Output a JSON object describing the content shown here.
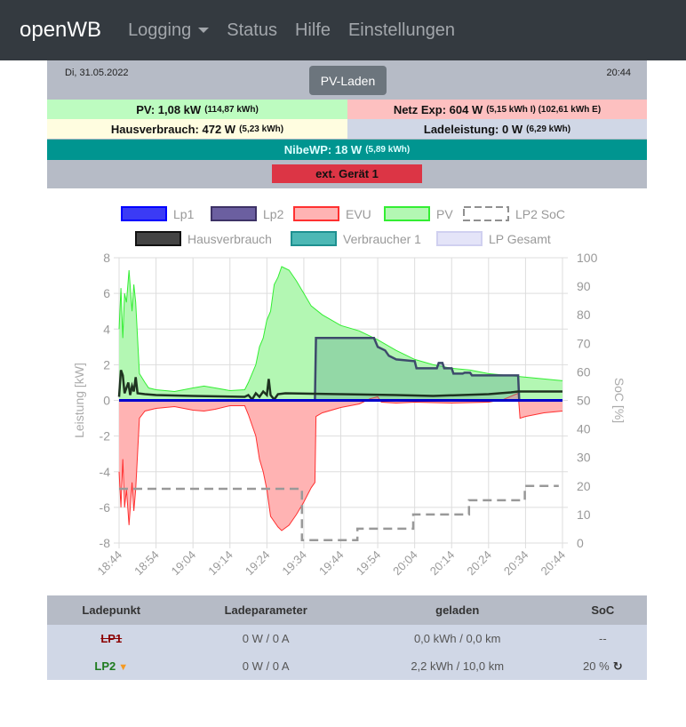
{
  "nav": {
    "brand": "openWB",
    "items": [
      "Logging",
      "Status",
      "Hilfe",
      "Einstellungen"
    ]
  },
  "header": {
    "date": "Di, 31.05.2022",
    "time": "20:44",
    "mode_button": "PV-Laden"
  },
  "tiles": {
    "pv": {
      "label": "PV: 1,08 kW",
      "detail": "(114,87 kWh)",
      "color": "#bdfcc0"
    },
    "netz": {
      "label": "Netz Exp: 604 W",
      "detail": "(5,15 kWh I) (102,61 kWh E)",
      "color": "#fdc0c0"
    },
    "haus": {
      "label": "Hausverbrauch: 472 W",
      "detail": "(5,23 kWh)",
      "color": "#fffde0"
    },
    "lade": {
      "label": "Ladeleistung: 0 W",
      "detail": "(6,29 kWh)",
      "color": "#d0d7e6"
    },
    "nibe": {
      "label": "NibeWP: 18 W",
      "detail": "(5,89 kWh)",
      "color": "#009590"
    },
    "ext": {
      "label": "ext. Gerät 1",
      "color": "#dc3545"
    }
  },
  "chart_data": {
    "type": "line",
    "x_unit": "minutes since 18:44",
    "xticks": [
      "18:44",
      "18:54",
      "19:04",
      "19:14",
      "19:24",
      "19:34",
      "19:44",
      "19:54",
      "20:04",
      "20:14",
      "20:24",
      "20:34",
      "20:44"
    ],
    "xlim": [
      0,
      120
    ],
    "ylabel": "Leistung [kW]",
    "ylim": [
      -8,
      8
    ],
    "yticks": [
      8,
      6,
      4,
      2,
      0,
      -2,
      -4,
      -6,
      -8
    ],
    "y2label": "SoC [%]",
    "y2lim": [
      0,
      100
    ],
    "y2ticks": [
      100,
      90,
      80,
      70,
      60,
      50,
      40,
      30,
      20,
      10,
      0
    ],
    "legend": [
      {
        "name": "Lp1",
        "fill": "#3b3bf5",
        "stroke": "#0000ff"
      },
      {
        "name": "Lp2",
        "fill": "#6b5fa0",
        "stroke": "#3d3266"
      },
      {
        "name": "EVU",
        "fill": "#ffb3b3",
        "stroke": "#ff3030"
      },
      {
        "name": "PV",
        "fill": "#b3f7b3",
        "stroke": "#33ee33"
      },
      {
        "name": "LP2 SoC",
        "fill": "none",
        "stroke": "#909090",
        "dashed": true
      },
      {
        "name": "Hausverbrauch",
        "fill": "#444",
        "stroke": "#111"
      },
      {
        "name": "Verbraucher 1",
        "fill": "#4db8b5",
        "stroke": "#1e9090"
      },
      {
        "name": "LP Gesamt",
        "fill": "#e4e4f8",
        "stroke": "#d0d0f0"
      }
    ],
    "series": {
      "PV": [
        [
          0,
          4
        ],
        [
          0.5,
          6.3
        ],
        [
          1,
          3.5
        ],
        [
          1.5,
          6
        ],
        [
          2,
          5.5
        ],
        [
          2.7,
          7.3
        ],
        [
          3.5,
          5
        ],
        [
          4,
          6.5
        ],
        [
          4.5,
          5.5
        ],
        [
          5.5,
          1.5
        ],
        [
          7,
          1
        ],
        [
          8,
          0.7
        ],
        [
          10,
          0.6
        ],
        [
          15,
          0.5
        ],
        [
          20,
          0.7
        ],
        [
          23,
          0.8
        ],
        [
          26,
          0.7
        ],
        [
          30,
          0.55
        ],
        [
          34,
          0.6
        ],
        [
          35,
          1
        ],
        [
          37,
          2
        ],
        [
          38,
          3
        ],
        [
          39,
          3.5
        ],
        [
          40,
          4.5
        ],
        [
          41,
          5
        ],
        [
          42,
          6.5
        ],
        [
          43,
          6.9
        ],
        [
          44,
          7.5
        ],
        [
          46,
          7.3
        ],
        [
          48,
          6.7
        ],
        [
          50,
          6
        ],
        [
          52,
          5.3
        ],
        [
          55,
          4.8
        ],
        [
          60,
          4.2
        ],
        [
          65,
          3.9
        ],
        [
          70,
          3.4
        ],
        [
          75,
          2.8
        ],
        [
          80,
          2.3
        ],
        [
          85,
          2.0
        ],
        [
          90,
          1.8
        ],
        [
          95,
          1.7
        ],
        [
          100,
          1.5
        ],
        [
          105,
          1.4
        ],
        [
          110,
          1.3
        ],
        [
          115,
          1.2
        ],
        [
          120,
          1.1
        ]
      ],
      "EVU": [
        [
          0,
          -4
        ],
        [
          0.5,
          -6
        ],
        [
          1,
          -3.3
        ],
        [
          1.5,
          -6
        ],
        [
          2,
          -5
        ],
        [
          2.7,
          -7
        ],
        [
          3.5,
          -4.6
        ],
        [
          4,
          -6.2
        ],
        [
          4.5,
          -5
        ],
        [
          5.5,
          -1
        ],
        [
          7,
          -0.6
        ],
        [
          10,
          -0.45
        ],
        [
          15,
          -0.35
        ],
        [
          20,
          -0.55
        ],
        [
          23,
          -0.6
        ],
        [
          26,
          -0.5
        ],
        [
          30,
          -0.3
        ],
        [
          34,
          -0.3
        ],
        [
          35,
          -0.8
        ],
        [
          37,
          -2
        ],
        [
          38,
          -3.3
        ],
        [
          39,
          -4
        ],
        [
          40,
          -5
        ],
        [
          41,
          -6.5
        ],
        [
          42,
          -6.8
        ],
        [
          43,
          -7.1
        ],
        [
          44,
          -7.3
        ],
        [
          46,
          -7
        ],
        [
          48,
          -6.4
        ],
        [
          50,
          -5.7
        ],
        [
          52,
          -4.9
        ],
        [
          53,
          -4.6
        ],
        [
          53.3,
          -0.9
        ],
        [
          55,
          -0.7
        ],
        [
          60,
          -0.4
        ],
        [
          65,
          -0.2
        ],
        [
          68,
          0.1
        ],
        [
          70,
          0.2
        ],
        [
          71,
          -0.1
        ],
        [
          75,
          -0.15
        ],
        [
          80,
          -0.1
        ],
        [
          90,
          -0.15
        ],
        [
          100,
          -0.1
        ],
        [
          104,
          0.05
        ],
        [
          108,
          0.4
        ],
        [
          108.5,
          -1
        ],
        [
          110,
          -0.9
        ],
        [
          115,
          -0.7
        ],
        [
          120,
          -0.6
        ]
      ],
      "Hausverbrauch": [
        [
          0,
          0.2
        ],
        [
          0.5,
          1.7
        ],
        [
          1,
          1.4
        ],
        [
          1.5,
          0.4
        ],
        [
          2.5,
          1
        ],
        [
          3,
          0.3
        ],
        [
          3.5,
          0.8
        ],
        [
          4,
          0.5
        ],
        [
          4.5,
          1.3
        ],
        [
          5,
          0.4
        ],
        [
          7,
          0.35
        ],
        [
          10,
          0.3
        ],
        [
          20,
          0.25
        ],
        [
          34,
          0.2
        ],
        [
          35,
          0.3
        ],
        [
          36,
          0.05
        ],
        [
          37,
          0.4
        ],
        [
          38,
          0.2
        ],
        [
          39,
          0.5
        ],
        [
          40,
          0.3
        ],
        [
          40.5,
          1.2
        ],
        [
          41,
          0.3
        ],
        [
          42,
          0.05
        ],
        [
          43,
          0.35
        ],
        [
          45,
          0.4
        ],
        [
          60,
          0.35
        ],
        [
          75,
          0.3
        ],
        [
          85,
          0.25
        ],
        [
          100,
          0.35
        ],
        [
          106,
          0.45
        ],
        [
          108,
          0.5
        ],
        [
          120,
          0.5
        ]
      ],
      "Lp2": [
        [
          0,
          0
        ],
        [
          53,
          0
        ],
        [
          53.3,
          3.5
        ],
        [
          69,
          3.5
        ],
        [
          70,
          3
        ],
        [
          72,
          2.8
        ],
        [
          73,
          2.5
        ],
        [
          75,
          2.3
        ],
        [
          80,
          2.2
        ],
        [
          80.5,
          1.8
        ],
        [
          86,
          1.8
        ],
        [
          86.5,
          2.1
        ],
        [
          87.5,
          2.1
        ],
        [
          88,
          1.8
        ],
        [
          90,
          1.8
        ],
        [
          90.5,
          1.5
        ],
        [
          93,
          1.5
        ],
        [
          93.5,
          1.55
        ],
        [
          95,
          1.55
        ],
        [
          95.5,
          1.4
        ],
        [
          108,
          1.4
        ],
        [
          108.3,
          0
        ],
        [
          120,
          0
        ]
      ],
      "Lp1": [
        [
          0,
          0
        ],
        [
          120,
          0
        ]
      ],
      "LP2 SoC": [
        [
          0,
          19
        ],
        [
          49.5,
          19
        ],
        [
          49.5,
          1
        ],
        [
          64.5,
          1
        ],
        [
          64.5,
          5
        ],
        [
          79.6,
          5
        ],
        [
          79.6,
          10
        ],
        [
          94.7,
          10
        ],
        [
          94.7,
          15
        ],
        [
          109.8,
          15
        ],
        [
          109.8,
          20
        ],
        [
          119,
          20
        ]
      ]
    }
  },
  "table": {
    "headers": [
      "Ladepunkt",
      "Ladeparameter",
      "geladen",
      "SoC"
    ],
    "rows": [
      {
        "name": "LP1",
        "param": "0 W / 0 A",
        "charged": "0,0 kWh / 0,0 km",
        "soc": "--"
      },
      {
        "name": "LP2",
        "param": "0 W / 0 A",
        "charged": "2,2 kWh / 10,0 km",
        "soc": "20 %"
      }
    ]
  }
}
